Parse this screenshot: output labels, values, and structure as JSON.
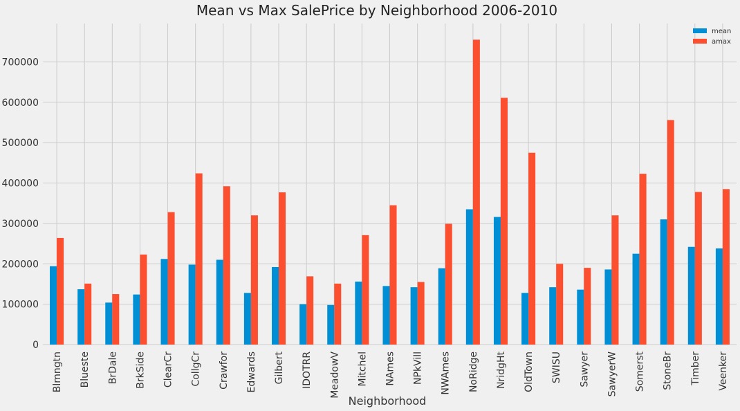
{
  "chart_data": {
    "type": "bar",
    "title": "Mean vs Max SalePrice by Neighborhood 2006-2010",
    "xlabel": "Neighborhood",
    "ylabel": "",
    "ylim": [
      0,
      795000
    ],
    "yticks": [
      0,
      100000,
      200000,
      300000,
      400000,
      500000,
      600000,
      700000
    ],
    "grid": true,
    "legend_position": "top-right",
    "categories": [
      "Blmngtn",
      "Blueste",
      "BrDale",
      "BrkSide",
      "ClearCr",
      "CollgCr",
      "Crawfor",
      "Edwards",
      "Gilbert",
      "IDOTRR",
      "MeadowV",
      "Mitchel",
      "NAmes",
      "NPkVill",
      "NWAmes",
      "NoRidge",
      "NridgHt",
      "OldTown",
      "SWISU",
      "Sawyer",
      "SawyerW",
      "Somerst",
      "StoneBr",
      "Timber",
      "Veenker"
    ],
    "series": [
      {
        "name": "mean",
        "color": "#008fd5",
        "values": [
          194000,
          137000,
          104000,
          124000,
          212000,
          198000,
          210000,
          128000,
          192000,
          100000,
          98000,
          156000,
          145000,
          142000,
          189000,
          335000,
          316000,
          128000,
          142000,
          136000,
          186000,
          225000,
          310000,
          242000,
          238000
        ]
      },
      {
        "name": "amax",
        "color": "#fc4f30",
        "values": [
          264000,
          151000,
          125000,
          223000,
          328000,
          424000,
          392000,
          320000,
          377000,
          169000,
          151000,
          271000,
          345000,
          155000,
          299000,
          755000,
          611000,
          475000,
          200000,
          190000,
          320000,
          423000,
          556000,
          378000,
          385000
        ]
      }
    ]
  }
}
